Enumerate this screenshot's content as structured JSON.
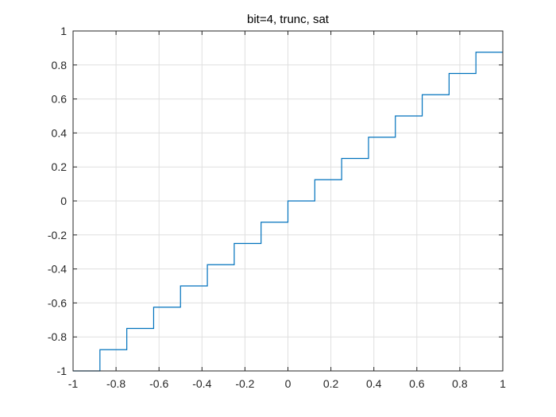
{
  "chart_data": {
    "type": "line",
    "title": "bit=4, trunc, sat",
    "xlabel": "",
    "ylabel": "",
    "xlim": [
      -1,
      1
    ],
    "ylim": [
      -1,
      1
    ],
    "xticks": [
      -1,
      -0.8,
      -0.6,
      -0.4,
      -0.2,
      0,
      0.2,
      0.4,
      0.6,
      0.8,
      1
    ],
    "yticks": [
      -1,
      -0.8,
      -0.6,
      -0.4,
      -0.2,
      0,
      0.2,
      0.4,
      0.6,
      0.8,
      1
    ],
    "xtick_labels": [
      "-1",
      "-0.8",
      "-0.6",
      "-0.4",
      "-0.2",
      "0",
      "0.2",
      "0.4",
      "0.6",
      "0.8",
      "1"
    ],
    "ytick_labels": [
      "-1",
      "-0.8",
      "-0.6",
      "-0.4",
      "-0.2",
      "0",
      "0.2",
      "0.4",
      "0.6",
      "0.8",
      "1"
    ],
    "grid": true,
    "series": [
      {
        "color": "#0072bd",
        "x": [
          -1,
          -0.875,
          -0.875,
          -0.75,
          -0.75,
          -0.625,
          -0.625,
          -0.5,
          -0.5,
          -0.375,
          -0.375,
          -0.25,
          -0.25,
          -0.125,
          -0.125,
          0,
          0,
          0.125,
          0.125,
          0.25,
          0.25,
          0.375,
          0.375,
          0.5,
          0.5,
          0.625,
          0.625,
          0.75,
          0.75,
          0.875,
          0.875,
          1
        ],
        "y": [
          -1,
          -1,
          -0.875,
          -0.875,
          -0.75,
          -0.75,
          -0.625,
          -0.625,
          -0.5,
          -0.5,
          -0.375,
          -0.375,
          -0.25,
          -0.25,
          -0.125,
          -0.125,
          0,
          0,
          0.125,
          0.125,
          0.25,
          0.25,
          0.375,
          0.375,
          0.5,
          0.5,
          0.625,
          0.625,
          0.75,
          0.75,
          0.875,
          0.875
        ]
      }
    ]
  }
}
